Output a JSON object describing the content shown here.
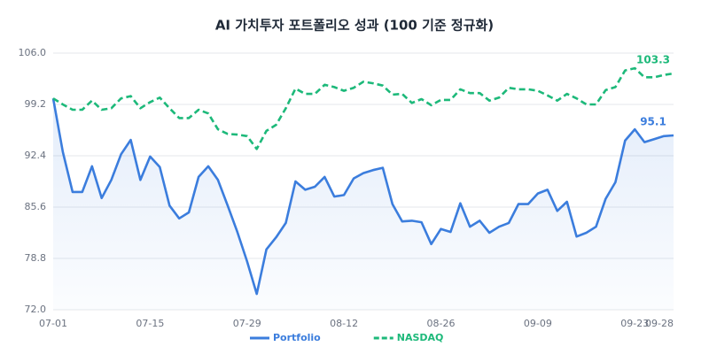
{
  "chart_data": {
    "type": "line",
    "title": "AI 가치투자 포트폴리오 성과 (100 기준 정규화)",
    "categories": [
      "07-01",
      null,
      null,
      null,
      null,
      null,
      null,
      null,
      null,
      null,
      "07-15",
      null,
      null,
      null,
      null,
      null,
      null,
      null,
      null,
      null,
      "07-29",
      null,
      null,
      null,
      null,
      null,
      null,
      null,
      null,
      null,
      "08-12",
      null,
      null,
      null,
      null,
      null,
      null,
      null,
      null,
      null,
      "08-26",
      null,
      null,
      null,
      null,
      null,
      null,
      null,
      null,
      null,
      "09-09",
      null,
      null,
      null,
      null,
      null,
      null,
      null,
      null,
      null,
      "09-23",
      null,
      null,
      null,
      "09-28"
    ],
    "series": [
      {
        "name": "Portfolio",
        "color": "#3b7ddd",
        "dashed": false,
        "area": true,
        "values": [
          100.0,
          92.9,
          87.6,
          87.6,
          91.0,
          86.8,
          89.2,
          92.6,
          94.5,
          89.2,
          92.3,
          90.9,
          85.8,
          84.1,
          84.9,
          89.6,
          91.0,
          89.2,
          85.8,
          82.3,
          78.4,
          74.1,
          80.0,
          81.6,
          83.5,
          89.0,
          87.9,
          88.3,
          89.6,
          87.0,
          87.2,
          89.4,
          90.1,
          90.5,
          90.8,
          86.0,
          83.7,
          83.8,
          83.6,
          80.7,
          82.7,
          82.3,
          86.1,
          83.0,
          83.8,
          82.2,
          83.0,
          83.5,
          86.0,
          86.0,
          87.4,
          87.9,
          85.1,
          86.3,
          81.7,
          82.2,
          83.0,
          86.7,
          88.9,
          94.4,
          95.9,
          94.2,
          94.6,
          95.0,
          95.1
        ]
      },
      {
        "name": "NASDAQ",
        "color": "#1db97a",
        "dashed": true,
        "area": false,
        "values": [
          100.0,
          99.2,
          98.5,
          98.5,
          99.7,
          98.5,
          98.7,
          100.0,
          100.3,
          98.7,
          99.5,
          100.1,
          98.7,
          97.4,
          97.4,
          98.5,
          98.0,
          95.9,
          95.3,
          95.2,
          95.0,
          93.3,
          95.7,
          96.5,
          98.7,
          101.3,
          100.6,
          100.6,
          101.8,
          101.5,
          101.0,
          101.4,
          102.2,
          102.0,
          101.7,
          100.5,
          100.6,
          99.4,
          99.9,
          99.1,
          99.8,
          99.8,
          101.2,
          100.7,
          100.7,
          99.7,
          100.1,
          101.4,
          101.2,
          101.2,
          101.0,
          100.4,
          99.7,
          100.6,
          100.0,
          99.2,
          99.2,
          101.1,
          101.5,
          103.7,
          104.0,
          102.8,
          102.8,
          103.1,
          103.3
        ]
      }
    ],
    "ylim": [
      72,
      106
    ],
    "yticks": [
      {
        "value": 72,
        "label": "72.0"
      },
      78.8,
      85.6,
      92.4,
      99.2,
      {
        "value": 106,
        "label": "106.0"
      }
    ],
    "grid": true,
    "legend": "bottom"
  }
}
